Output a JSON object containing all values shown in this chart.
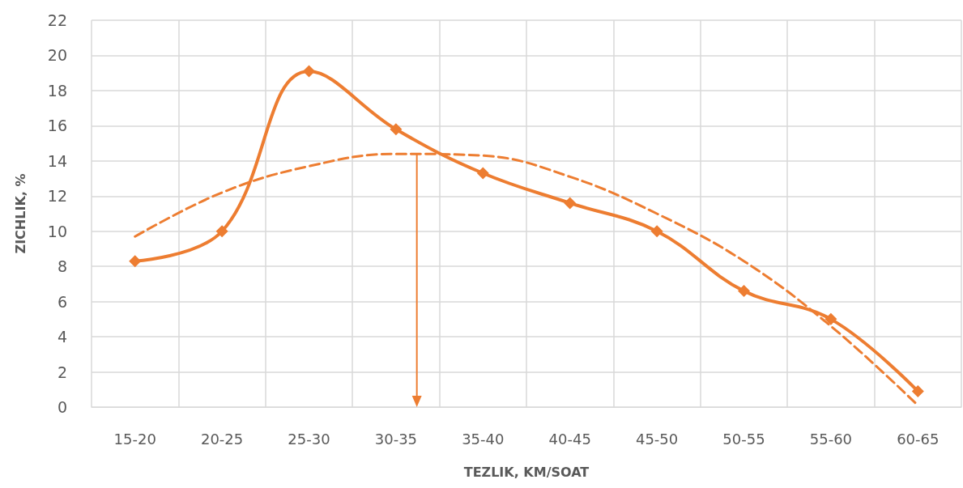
{
  "chart_data": {
    "type": "line",
    "xlabel": "TEZLIK, KM/SOAT",
    "ylabel": "ZICHLIK, %",
    "categories": [
      "15-20",
      "20-25",
      "25-30",
      "30-35",
      "35-40",
      "40-45",
      "45-50",
      "50-55",
      "55-60",
      "60-65"
    ],
    "series": [
      {
        "color": "#ed7d31",
        "marker": "diamond",
        "line_style": "solid",
        "values": [
          8.3,
          10,
          19.1,
          15.8,
          13.3,
          11.6,
          10,
          6.6,
          5,
          0.9
        ]
      },
      {
        "color": "#ed7d31",
        "marker": "none",
        "line_style": "dashed",
        "values": [
          9.7,
          12.2,
          13.7,
          14.4,
          14.3,
          13.1,
          11.0,
          8.3,
          4.6,
          0.1
        ]
      }
    ],
    "ylim": [
      0,
      22
    ],
    "yticks": [
      0,
      2,
      4,
      6,
      8,
      10,
      12,
      14,
      16,
      18,
      20,
      22
    ],
    "grid": true
  }
}
